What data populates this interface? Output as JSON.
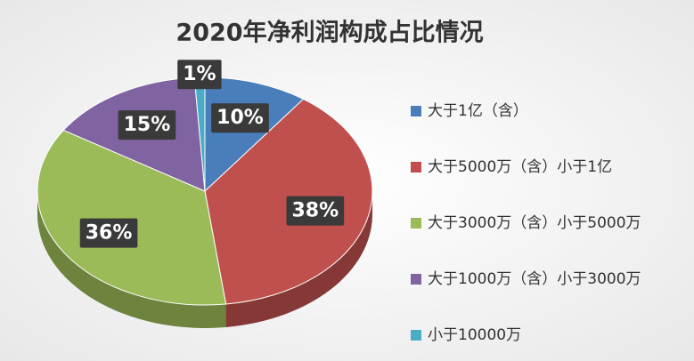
{
  "chart_data": {
    "type": "pie",
    "title": "2020年净利润构成占比情况",
    "categories": [
      "大于1亿（含）",
      "大于5000万（含）小于1亿",
      "大于3000万（含）小于5000万",
      "大于1000万（含）小于3000万",
      "小于10000万"
    ],
    "values": [
      10,
      38,
      36,
      15,
      1
    ],
    "value_labels": [
      "10%",
      "38%",
      "36%",
      "15%",
      "1%"
    ],
    "colors": [
      "#4a7ebb",
      "#c0504d",
      "#9bbb59",
      "#8064a2",
      "#4bacc6"
    ],
    "legend": "right"
  }
}
